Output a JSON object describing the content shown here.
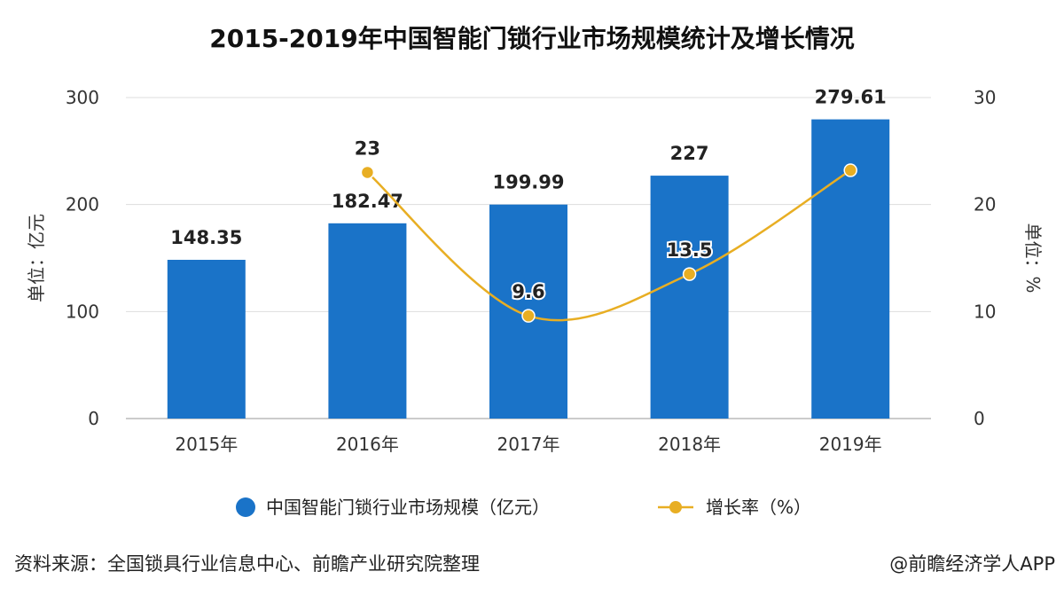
{
  "title": "2015-2019年中国智能门锁行业市场规模统计及增长情况",
  "source": "资料来源：全国锁具行业信息中心、前瞻产业研究院整理",
  "credit": "@前瞻经济学人APP",
  "chart_data": {
    "type": "bar+line",
    "categories": [
      "2015年",
      "2016年",
      "2017年",
      "2018年",
      "2019年"
    ],
    "y_left": {
      "label": "单位：亿元",
      "lim": [
        0,
        300
      ],
      "ticks": [
        "0",
        "100",
        "200",
        "300"
      ]
    },
    "y_right": {
      "label": "单位：%",
      "lim": [
        0,
        30
      ],
      "ticks": [
        "0",
        "10",
        "20",
        "30"
      ]
    },
    "grid": true,
    "legend_position": "bottom",
    "series": [
      {
        "name": "中国智能门锁行业市场规模（亿元）",
        "type": "bar",
        "axis": "left",
        "color": "#1a73c8",
        "values": [
          148.35,
          182.47,
          199.99,
          227,
          279.61
        ],
        "labels": [
          "148.35",
          "182.47",
          "199.99",
          "227",
          "279.61"
        ]
      },
      {
        "name": "增长率（%）",
        "type": "line",
        "axis": "right",
        "color": "#e8ae23",
        "values": [
          null,
          23,
          9.6,
          13.5,
          23.2
        ],
        "labels": [
          "",
          "23",
          "9.6",
          "13.5",
          ""
        ]
      }
    ]
  }
}
